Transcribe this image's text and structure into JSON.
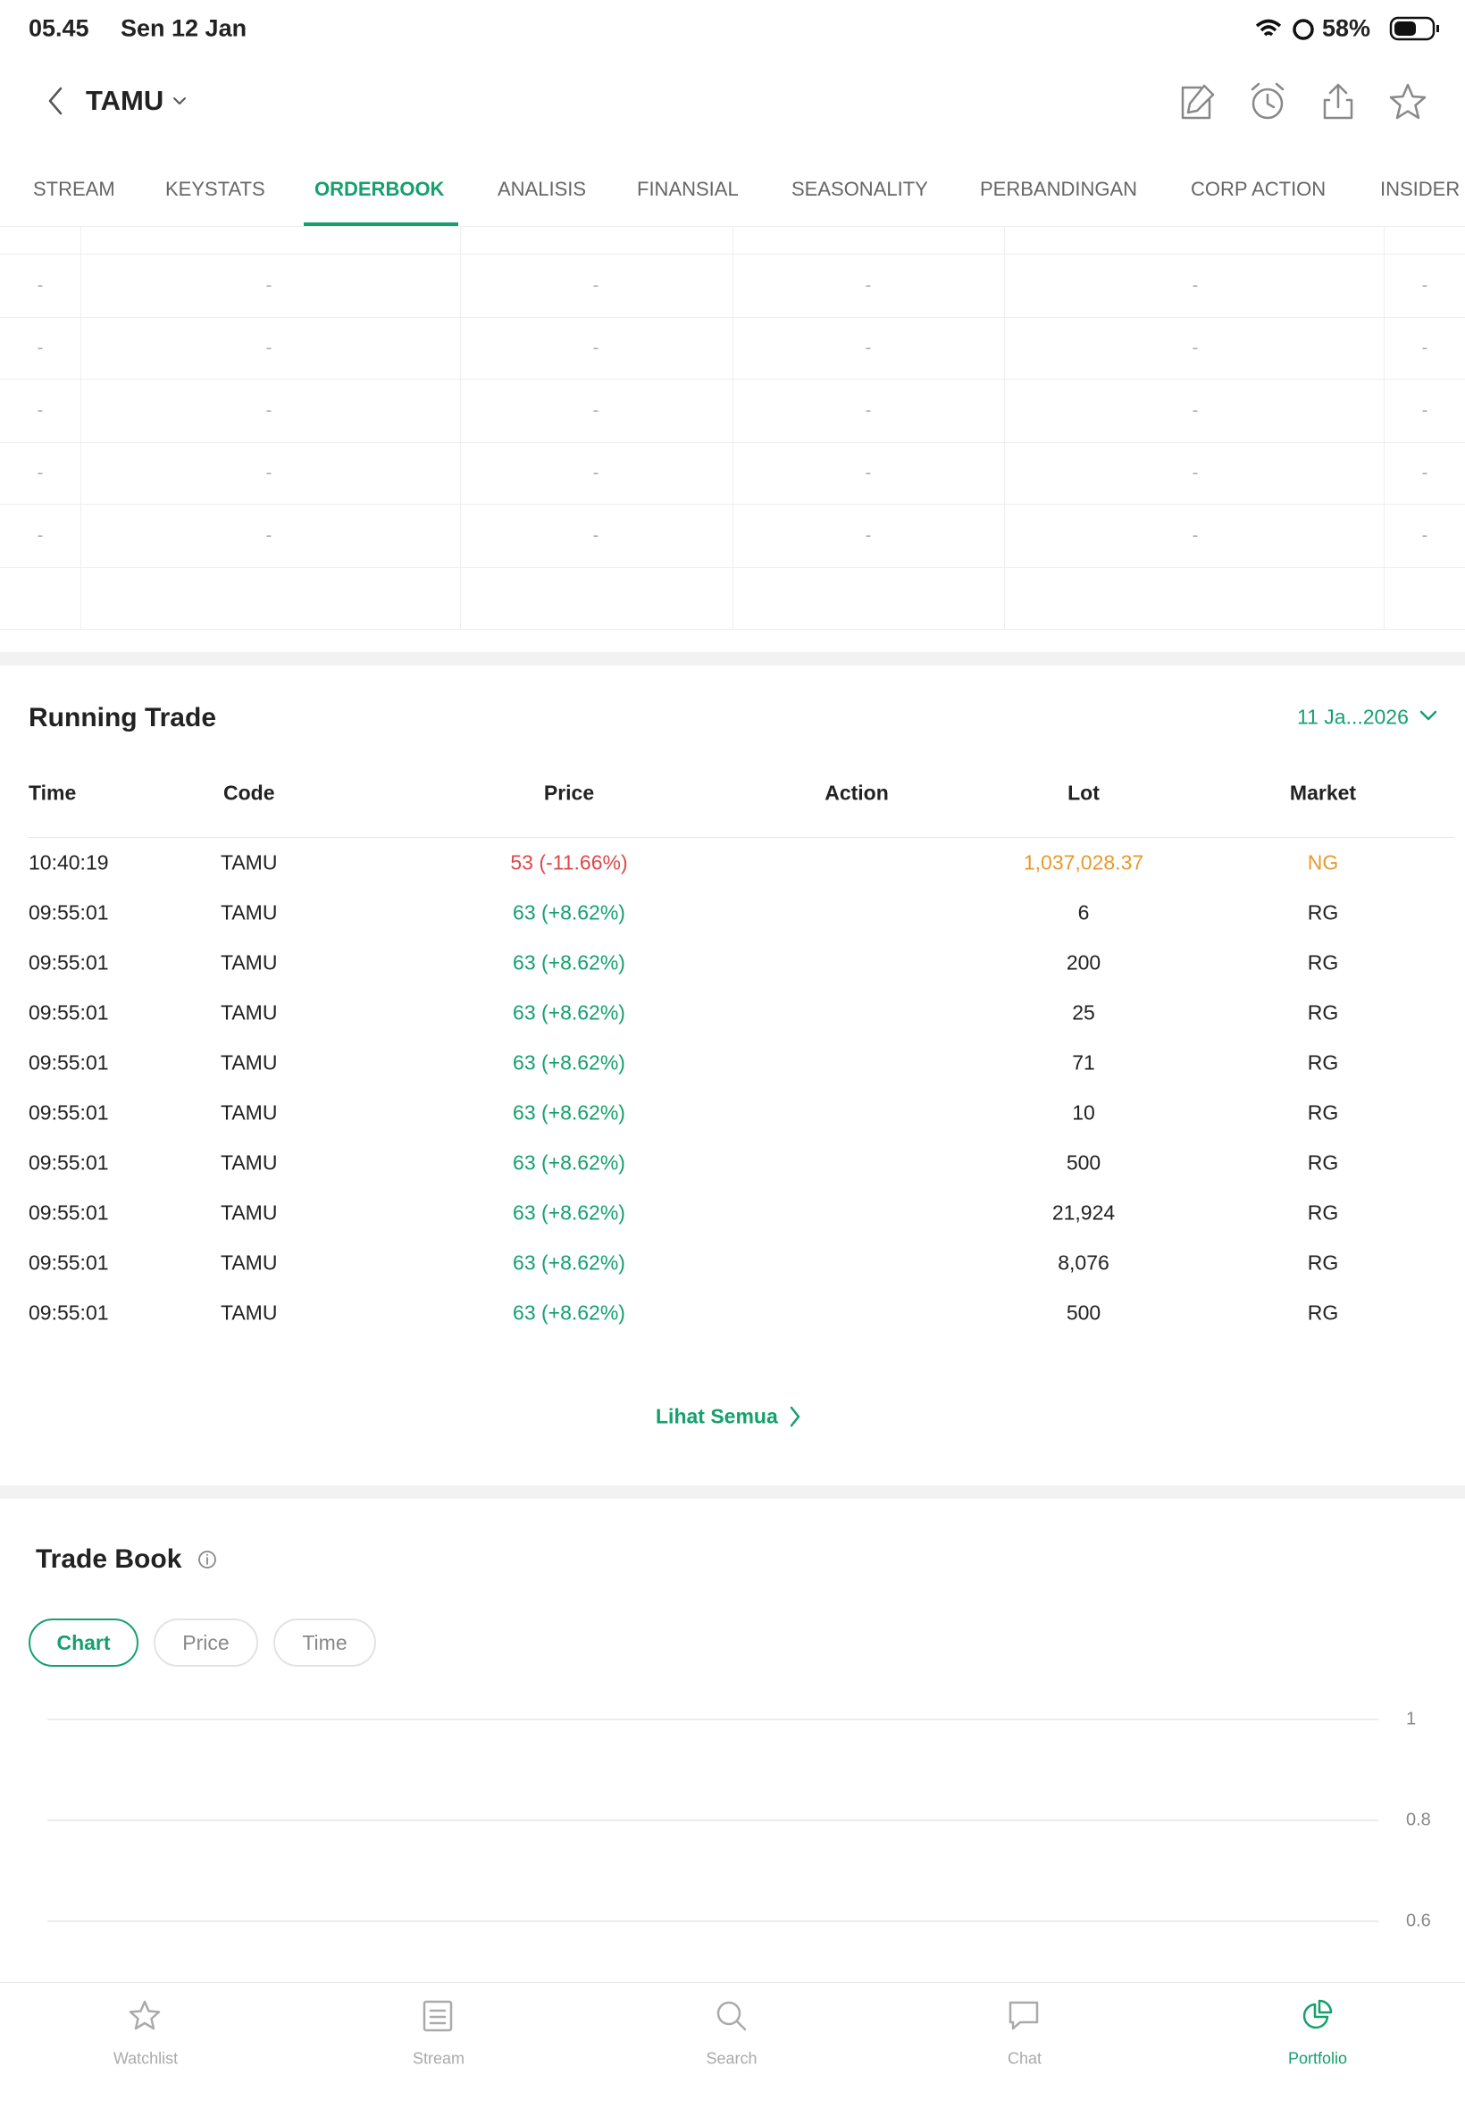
{
  "status_bar": {
    "time": "05.45",
    "date": "Sen 12 Jan",
    "battery": "58%"
  },
  "header": {
    "symbol": "TAMU"
  },
  "tabs": {
    "items": [
      "STREAM",
      "KEYSTATS",
      "ORDERBOOK",
      "ANALISIS",
      "FINANSIAL",
      "SEASONALITY",
      "PERBANDINGAN",
      "CORP ACTION",
      "INSIDER"
    ],
    "active": 2
  },
  "orderbook": {
    "rows": [
      [
        "-",
        "-",
        "-",
        "-",
        "-",
        "-"
      ],
      [
        "-",
        "-",
        "-",
        "-",
        "-",
        "-"
      ],
      [
        "-",
        "-",
        "-",
        "-",
        "-",
        "-"
      ],
      [
        "-",
        "-",
        "-",
        "-",
        "-",
        "-"
      ],
      [
        "-",
        "-",
        "-",
        "-",
        "-",
        "-"
      ]
    ]
  },
  "running_trade": {
    "title": "Running Trade",
    "date": "11 Ja...2026",
    "columns": [
      "Time",
      "Code",
      "Price",
      "Action",
      "Lot",
      "Market"
    ],
    "rows": [
      {
        "time": "10:40:19",
        "code": "TAMU",
        "price": "53 (-11.66%)",
        "lot": "1,037,028.37",
        "market": "NG",
        "price_color": "#e0484a",
        "lot_color": "#e89a2c"
      },
      {
        "time": "09:55:01",
        "code": "TAMU",
        "price": "63 (+8.62%)",
        "lot": "6",
        "market": "RG",
        "price_color": "#15a06e",
        "lot_color": "#222222"
      },
      {
        "time": "09:55:01",
        "code": "TAMU",
        "price": "63 (+8.62%)",
        "lot": "200",
        "market": "RG",
        "price_color": "#15a06e",
        "lot_color": "#222222"
      },
      {
        "time": "09:55:01",
        "code": "TAMU",
        "price": "63 (+8.62%)",
        "lot": "25",
        "market": "RG",
        "price_color": "#15a06e",
        "lot_color": "#222222"
      },
      {
        "time": "09:55:01",
        "code": "TAMU",
        "price": "63 (+8.62%)",
        "lot": "71",
        "market": "RG",
        "price_color": "#15a06e",
        "lot_color": "#222222"
      },
      {
        "time": "09:55:01",
        "code": "TAMU",
        "price": "63 (+8.62%)",
        "lot": "10",
        "market": "RG",
        "price_color": "#15a06e",
        "lot_color": "#222222"
      },
      {
        "time": "09:55:01",
        "code": "TAMU",
        "price": "63 (+8.62%)",
        "lot": "500",
        "market": "RG",
        "price_color": "#15a06e",
        "lot_color": "#222222"
      },
      {
        "time": "09:55:01",
        "code": "TAMU",
        "price": "63 (+8.62%)",
        "lot": "21,924",
        "market": "RG",
        "price_color": "#15a06e",
        "lot_color": "#222222"
      },
      {
        "time": "09:55:01",
        "code": "TAMU",
        "price": "63 (+8.62%)",
        "lot": "8,076",
        "market": "RG",
        "price_color": "#15a06e",
        "lot_color": "#222222"
      },
      {
        "time": "09:55:01",
        "code": "TAMU",
        "price": "63 (+8.62%)",
        "lot": "500",
        "market": "RG",
        "price_color": "#15a06e",
        "lot_color": "#222222"
      }
    ],
    "see_all": "Lihat Semua"
  },
  "trade_book": {
    "title": "Trade Book",
    "filters": [
      "Chart",
      "Price",
      "Time"
    ],
    "active_filter": 0,
    "chart": {
      "ylim": [
        0,
        1
      ],
      "yticks": [
        1,
        0.8,
        0.6
      ],
      "grid": true
    }
  },
  "bottom_nav": {
    "items": [
      "Watchlist",
      "Stream",
      "Search",
      "Chat",
      "Portfolio"
    ],
    "active": 4
  }
}
